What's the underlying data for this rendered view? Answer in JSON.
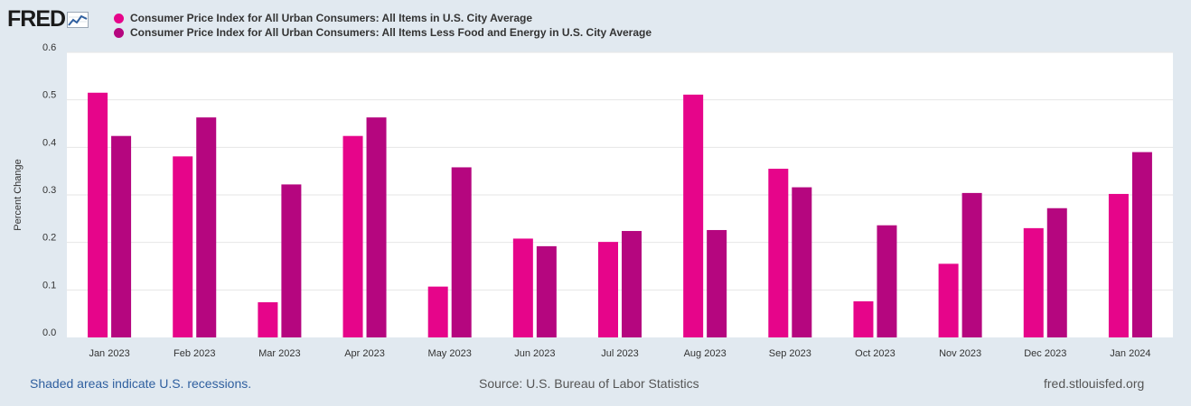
{
  "logo": {
    "text": "FRED"
  },
  "legend": [
    {
      "label": "Consumer Price Index for All Urban Consumers: All Items in U.S. City Average",
      "color": "#e6058a"
    },
    {
      "label": "Consumer Price Index for All Urban Consumers: All Items Less Food and Energy in U.S. City Average",
      "color": "#b5067f"
    }
  ],
  "chart_data": {
    "type": "bar",
    "title": "",
    "xlabel": "",
    "ylabel": "Percent Change",
    "ylim": [
      0,
      0.6
    ],
    "yticks": [
      "0.0",
      "0.1",
      "0.2",
      "0.3",
      "0.4",
      "0.5",
      "0.6"
    ],
    "grid": true,
    "categories": [
      "Jan 2023",
      "Feb 2023",
      "Mar 2023",
      "Apr 2023",
      "May 2023",
      "Jun 2023",
      "Jul 2023",
      "Aug 2023",
      "Sep 2023",
      "Oct 2023",
      "Nov 2023",
      "Dec 2023",
      "Jan 2024"
    ],
    "series": [
      {
        "name": "Consumer Price Index for All Urban Consumers: All Items in U.S. City Average",
        "color": "#e6058a",
        "values": [
          0.515,
          0.381,
          0.074,
          0.424,
          0.107,
          0.208,
          0.201,
          0.511,
          0.355,
          0.076,
          0.155,
          0.23,
          0.302
        ]
      },
      {
        "name": "Consumer Price Index for All Urban Consumers: All Items Less Food and Energy in U.S. City Average",
        "color": "#b5067f",
        "values": [
          0.424,
          0.463,
          0.322,
          0.463,
          0.358,
          0.192,
          0.224,
          0.226,
          0.316,
          0.236,
          0.304,
          0.272,
          0.39
        ]
      }
    ]
  },
  "footer": {
    "recessions_note": "Shaded areas indicate U.S. recessions.",
    "source": "Source: U.S. Bureau of Labor Statistics",
    "site": "fred.stlouisfed.org"
  }
}
